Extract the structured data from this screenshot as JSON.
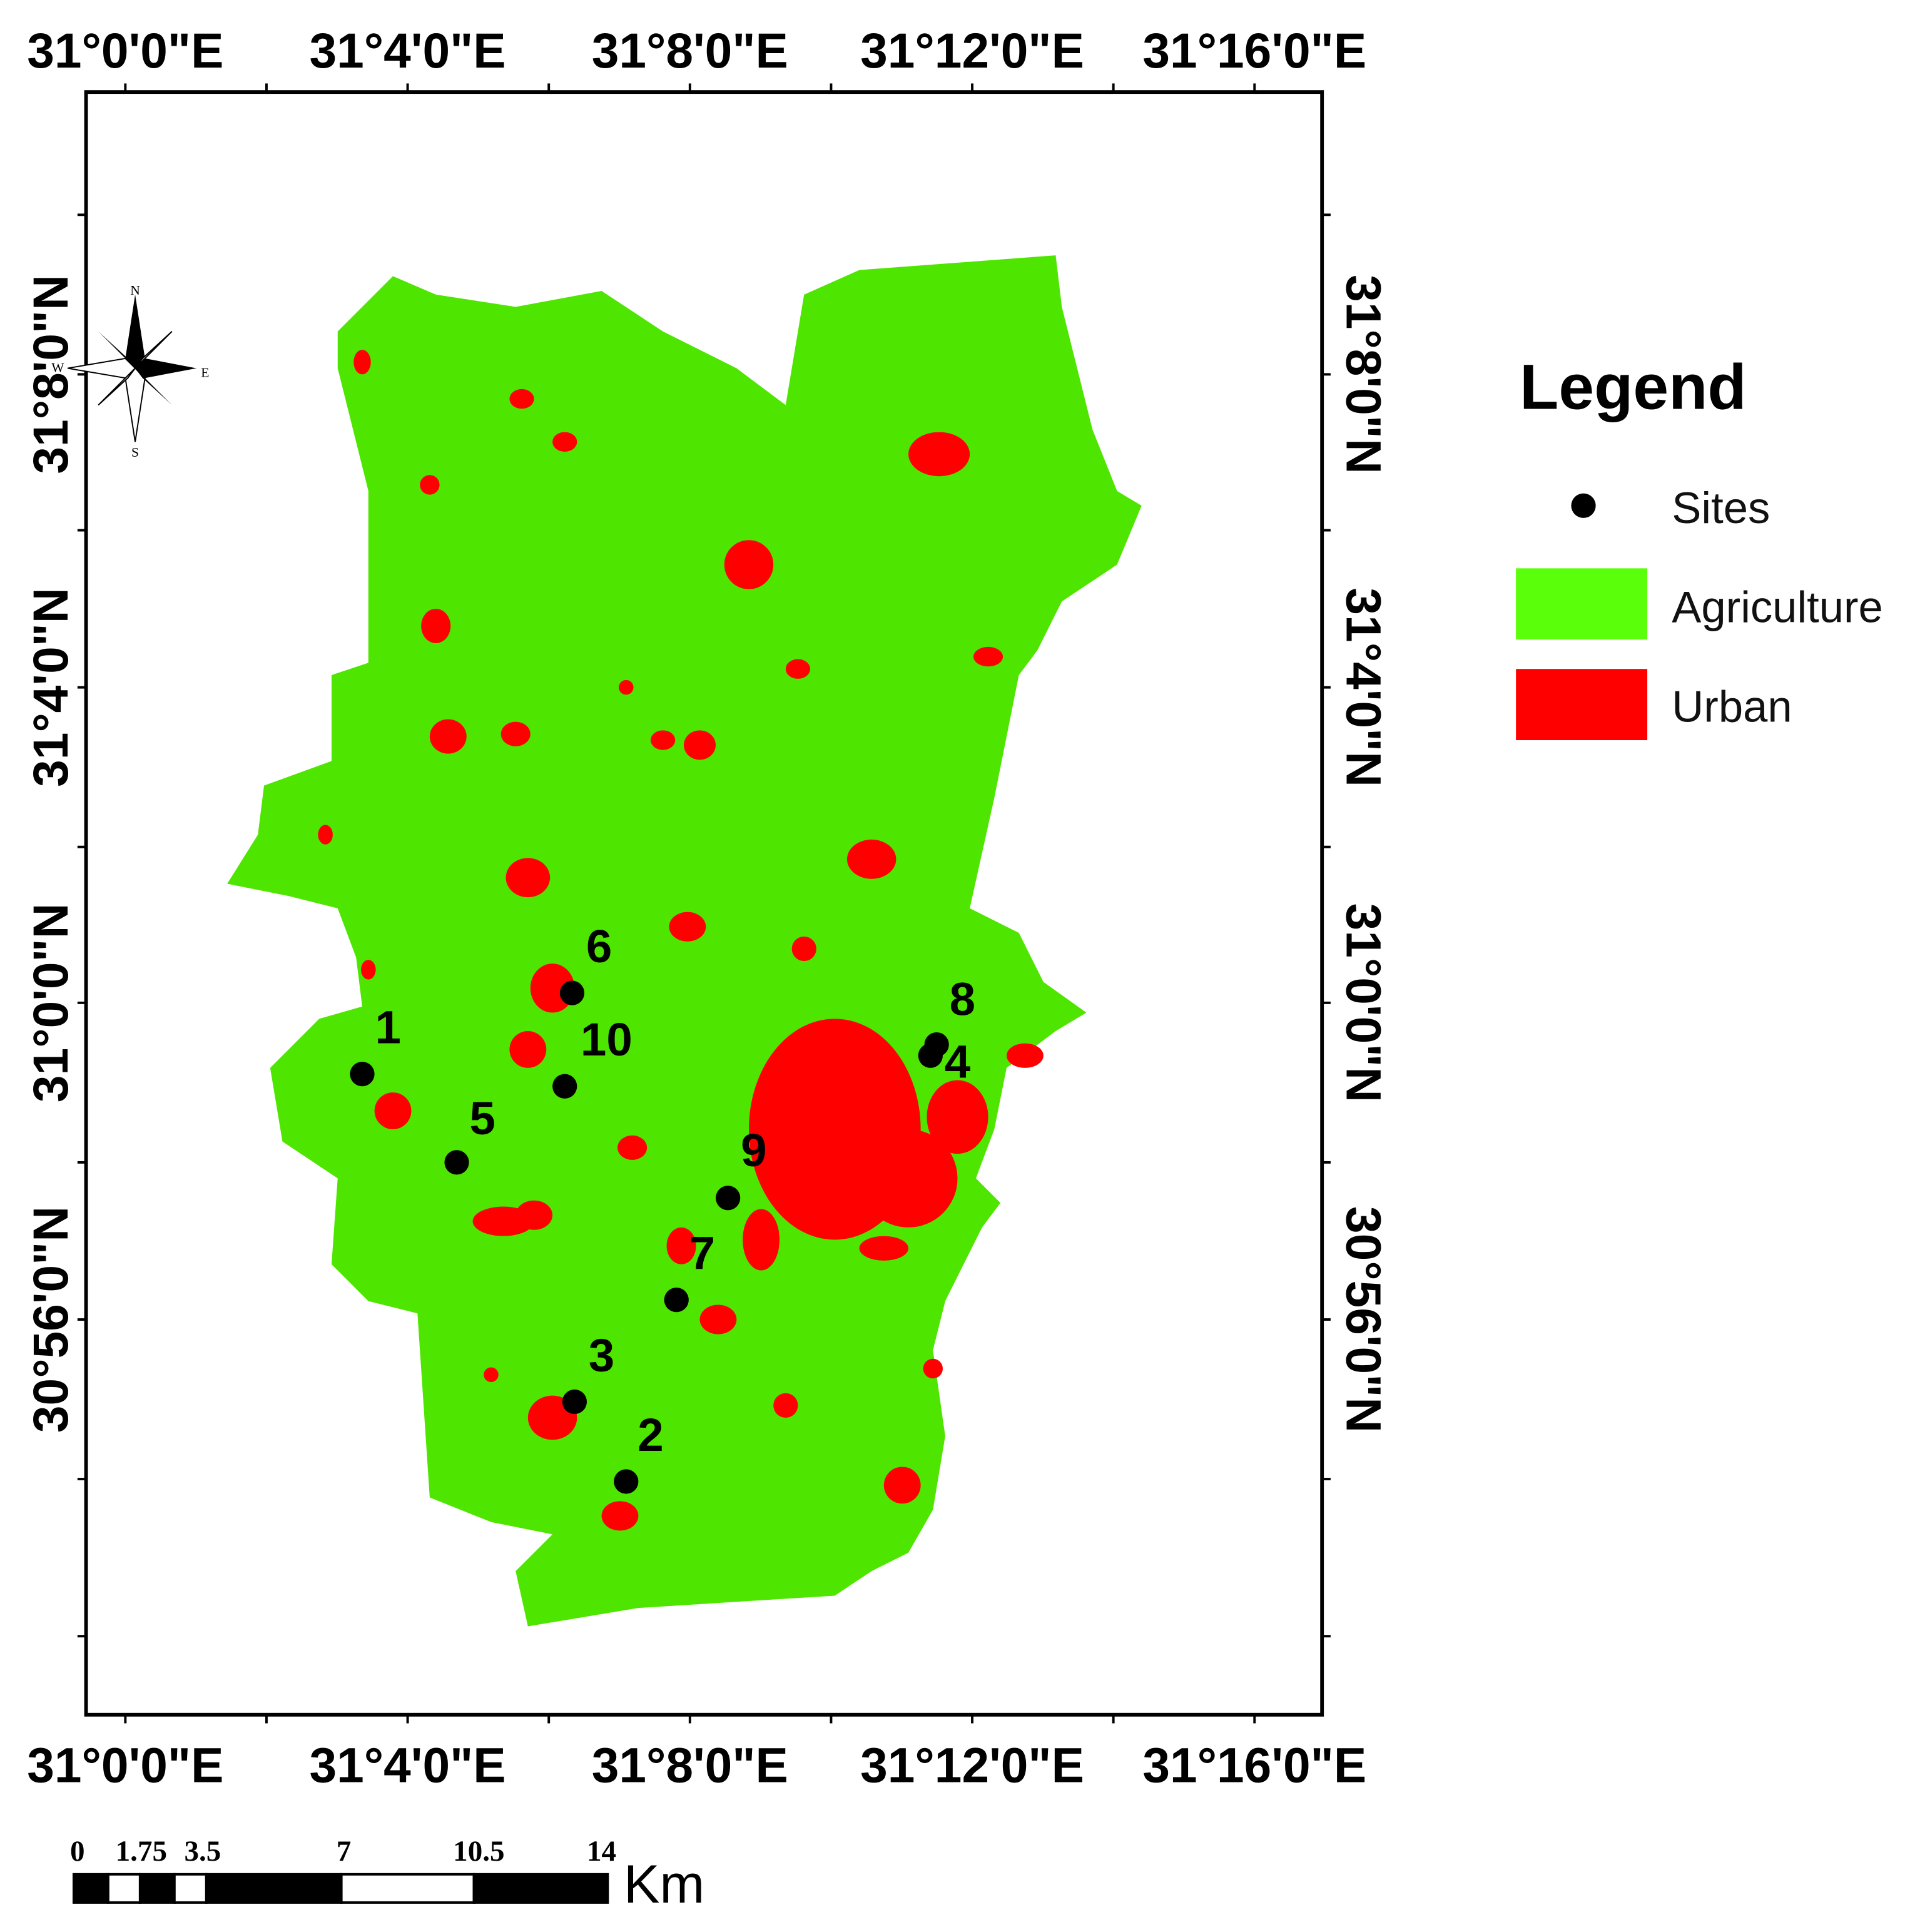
{
  "axes": {
    "top": [
      "31°0'0\"E",
      "31°4'0\"E",
      "31°8'0\"E",
      "31°12'0\"E",
      "31°16'0\"E"
    ],
    "bottom": [
      "31°0'0\"E",
      "31°4'0\"E",
      "31°8'0\"E",
      "31°12'0\"E",
      "31°16'0\"E"
    ],
    "left": [
      "31°8'0\"N",
      "31°4'0\"N",
      "31°0'0\"N",
      "30°56'0\"N"
    ],
    "right": [
      "31°8'0\"N",
      "31°4'0\"N",
      "31°0'0\"N",
      "30°56'0\"N"
    ]
  },
  "legend": {
    "title": "Legend",
    "items": [
      "Sites",
      "Agriculture",
      "Urban"
    ]
  },
  "sites": [
    "1",
    "2",
    "3",
    "4",
    "5",
    "6",
    "7",
    "8",
    "9",
    "10"
  ],
  "compass": {
    "n": "N",
    "s": "S",
    "e": "E",
    "w": "W"
  },
  "scale_bar": {
    "labels": [
      "0",
      "1.75",
      "3.5",
      "7",
      "10.5",
      "14"
    ],
    "unit": "Km"
  }
}
